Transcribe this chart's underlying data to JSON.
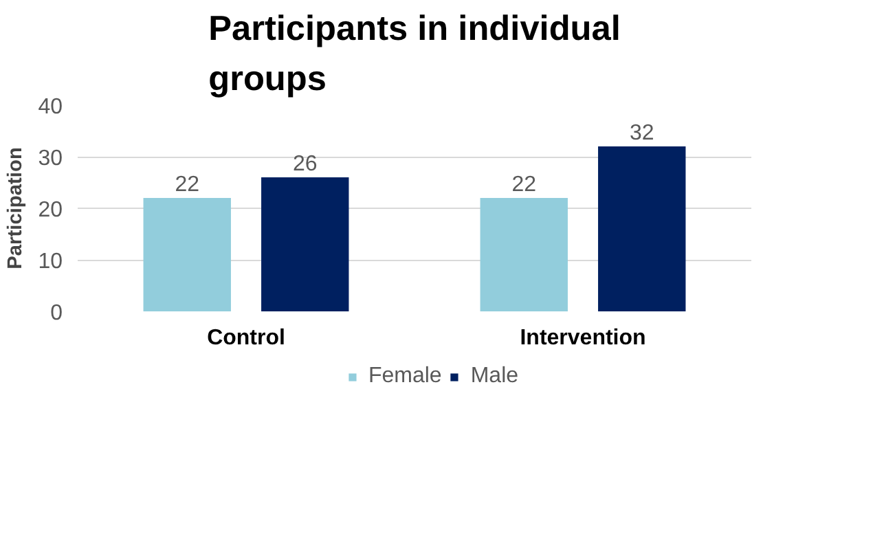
{
  "chart_data": {
    "type": "bar",
    "title": "Participants in individual groups",
    "ylabel": "Participation",
    "categories": [
      "Control",
      "Intervention"
    ],
    "series": [
      {
        "name": "Female",
        "color": "#92cddc",
        "values": [
          22,
          22
        ]
      },
      {
        "name": "Male",
        "color": "#002060",
        "values": [
          26,
          32
        ]
      }
    ],
    "ylim": [
      0,
      40
    ],
    "yticks": [
      0,
      10,
      20,
      30,
      40
    ],
    "grid": "y",
    "legend": "bottom",
    "data_labels": true
  }
}
